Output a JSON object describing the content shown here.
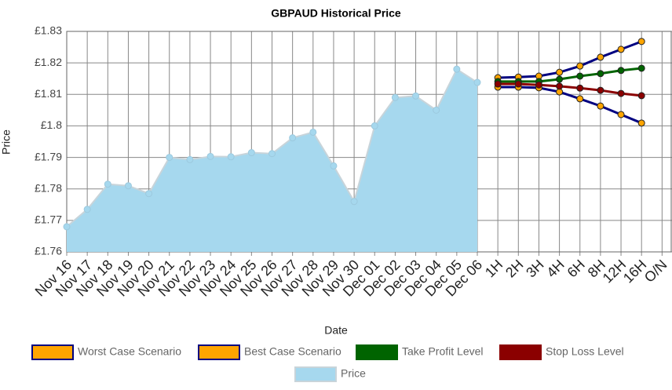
{
  "chart_data": {
    "type": "line",
    "title": "GBPAUD  Historical Price",
    "x_label": "Date",
    "y_label": "Price",
    "categories": [
      "Nov 16",
      "Nov 17",
      "Nov 18",
      "Nov 19",
      "Nov 20",
      "Nov 21",
      "Nov 22",
      "Nov 23",
      "Nov 24",
      "Nov 25",
      "Nov 26",
      "Nov 27",
      "Nov 28",
      "Nov 29",
      "Nov 30",
      "Dec 01",
      "Dec 02",
      "Dec 03",
      "Dec 04",
      "Dec 05",
      "Dec 06",
      "1H",
      "2H",
      "3H",
      "4H",
      "6H",
      "8H",
      "12H",
      "16H",
      "O/N"
    ],
    "ylim": [
      1.76,
      1.83
    ],
    "yticks": [
      {
        "value": 1.76,
        "label": "£1.76"
      },
      {
        "value": 1.77,
        "label": "£1.77"
      },
      {
        "value": 1.78,
        "label": "£1.78"
      },
      {
        "value": 1.79,
        "label": "£1.79"
      },
      {
        "value": 1.8,
        "label": "£1.8"
      },
      {
        "value": 1.81,
        "label": "£1.81"
      },
      {
        "value": 1.82,
        "label": "£1.82"
      },
      {
        "value": 1.83,
        "label": "£1.83"
      }
    ],
    "grid": true,
    "series": [
      {
        "name": "Worst Case Scenario",
        "color": "#000080",
        "marker_color": "#ffa500",
        "values": [
          null,
          null,
          null,
          null,
          null,
          null,
          null,
          null,
          null,
          null,
          null,
          null,
          null,
          null,
          null,
          null,
          null,
          null,
          null,
          null,
          null,
          1.8123,
          1.8123,
          1.8121,
          1.8108,
          1.8086,
          1.8063,
          1.8036,
          1.8009,
          null
        ]
      },
      {
        "name": "Best Case Scenario",
        "color": "#000080",
        "marker_color": "#ffa500",
        "values": [
          null,
          null,
          null,
          null,
          null,
          null,
          null,
          null,
          null,
          null,
          null,
          null,
          null,
          null,
          null,
          null,
          null,
          null,
          null,
          null,
          null,
          1.8153,
          1.8155,
          1.8158,
          1.817,
          1.819,
          1.8218,
          1.8243,
          1.8268,
          null
        ]
      },
      {
        "name": "Take Profit Level",
        "color": "#006400",
        "marker_color": "#006400",
        "values": [
          null,
          null,
          null,
          null,
          null,
          null,
          null,
          null,
          null,
          null,
          null,
          null,
          null,
          null,
          null,
          null,
          null,
          null,
          null,
          null,
          null,
          1.8141,
          1.8141,
          1.8141,
          1.8148,
          1.8158,
          1.8166,
          1.8176,
          1.8183,
          null
        ]
      },
      {
        "name": "Stop Loss Level",
        "color": "#8b0000",
        "marker_color": "#8b0000",
        "values": [
          null,
          null,
          null,
          null,
          null,
          null,
          null,
          null,
          null,
          null,
          null,
          null,
          null,
          null,
          null,
          null,
          null,
          null,
          null,
          null,
          null,
          1.8133,
          1.8133,
          1.813,
          1.8126,
          1.812,
          1.8113,
          1.8103,
          1.8096,
          null
        ]
      },
      {
        "name": "Price",
        "color": "#a6d8ee",
        "marker_color": "#a6d8ee",
        "area": true,
        "values": [
          1.768,
          1.7735,
          1.7815,
          1.781,
          1.7785,
          1.79,
          1.7893,
          1.7903,
          1.7902,
          1.7915,
          1.7912,
          1.7962,
          1.798,
          1.7873,
          1.776,
          1.8,
          1.809,
          1.8095,
          1.805,
          1.818,
          1.8138,
          null,
          null,
          null,
          null,
          null,
          null,
          null,
          null,
          null
        ]
      }
    ]
  }
}
